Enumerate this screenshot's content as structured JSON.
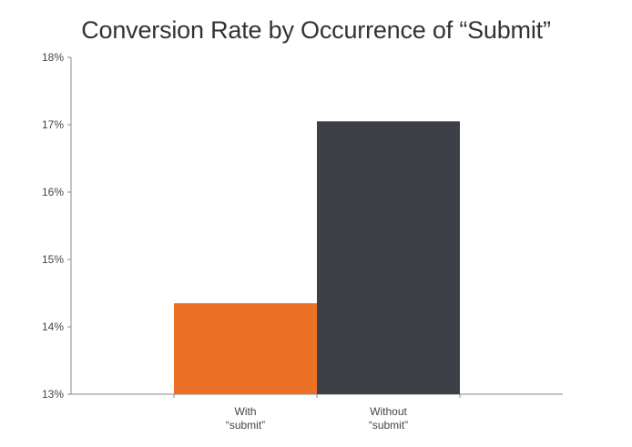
{
  "chart_data": {
    "type": "bar",
    "title": "Conversion Rate by Occurrence of “Submit”",
    "xlabel": "",
    "ylabel": "",
    "categories": [
      [
        "With",
        "“submit”"
      ],
      [
        "Without",
        "“submit”"
      ]
    ],
    "values": [
      14.35,
      17.05
    ],
    "colors": [
      "#EC7026",
      "#3D4047"
    ],
    "ylim": [
      13,
      18
    ],
    "yticks": [
      13,
      14,
      15,
      16,
      17,
      18
    ],
    "ytick_labels": [
      "13%",
      "14%",
      "15%",
      "16%",
      "17%",
      "18%"
    ],
    "grid": false,
    "legend": "none"
  }
}
